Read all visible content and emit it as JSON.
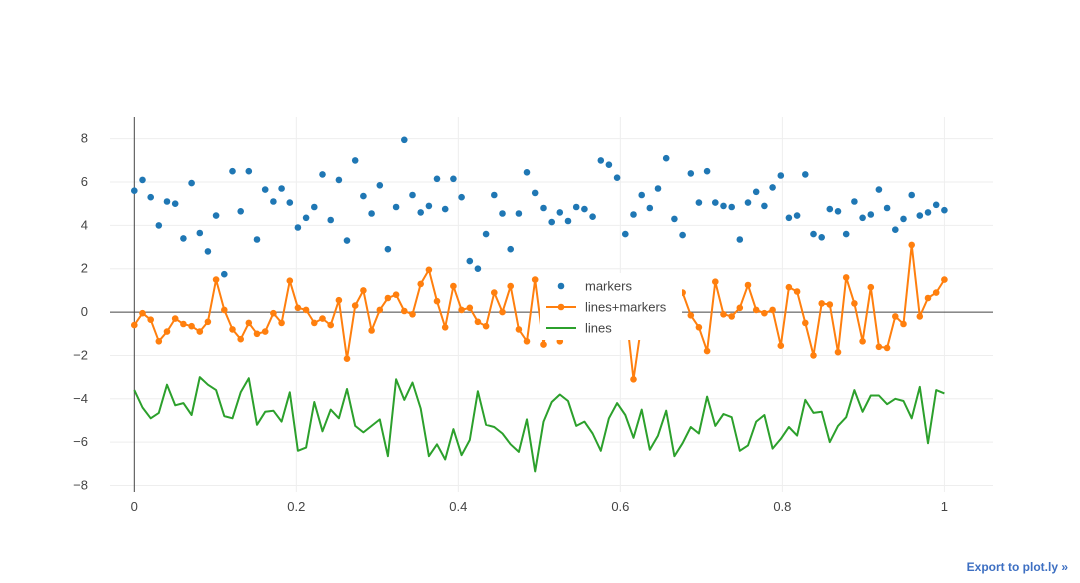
{
  "export_link": {
    "label": "Export to plot.ly »"
  },
  "colors": {
    "markers": "#1f77b4",
    "lines_markers": "#ff7f0e",
    "lines": "#2ca02c",
    "grid": "#eeeeee",
    "zeroline": "#444444",
    "tick_text": "#444444"
  },
  "chart_data": {
    "type": "scatter",
    "title": "",
    "xlabel": "",
    "ylabel": "",
    "xlim": [
      -0.03,
      1.06
    ],
    "ylim": [
      -8.3,
      9.0
    ],
    "x_ticks": [
      0,
      0.2,
      0.4,
      0.6,
      0.8,
      1
    ],
    "x_tick_labels": [
      "0",
      "0.2",
      "0.4",
      "0.6",
      "0.8",
      "1"
    ],
    "y_ticks": [
      -8,
      -6,
      -4,
      -2,
      0,
      2,
      4,
      6,
      8
    ],
    "y_tick_labels": [
      "−8",
      "−6",
      "−4",
      "−2",
      "0",
      "2",
      "4",
      "6",
      "8"
    ],
    "grid": true,
    "legend_position": "center",
    "x": [
      0,
      0.0101,
      0.0202,
      0.0303,
      0.0404,
      0.0505,
      0.0606,
      0.0707,
      0.0808,
      0.0909,
      0.101,
      0.1111,
      0.1212,
      0.1313,
      0.1414,
      0.1515,
      0.1616,
      0.1717,
      0.1818,
      0.1919,
      0.202,
      0.2121,
      0.2222,
      0.2323,
      0.2424,
      0.2525,
      0.2626,
      0.2727,
      0.2828,
      0.2929,
      0.303,
      0.3131,
      0.3232,
      0.3333,
      0.3434,
      0.3535,
      0.3636,
      0.3737,
      0.3838,
      0.3939,
      0.404,
      0.4141,
      0.4242,
      0.4343,
      0.4444,
      0.4545,
      0.4646,
      0.4747,
      0.4848,
      0.4949,
      0.5051,
      0.5152,
      0.5253,
      0.5354,
      0.5455,
      0.5556,
      0.5657,
      0.5758,
      0.5859,
      0.596,
      0.6061,
      0.6162,
      0.6263,
      0.6364,
      0.6465,
      0.6566,
      0.6667,
      0.6768,
      0.6869,
      0.697,
      0.7071,
      0.7172,
      0.7273,
      0.7374,
      0.7475,
      0.7576,
      0.7677,
      0.7778,
      0.7879,
      0.798,
      0.8081,
      0.8182,
      0.8283,
      0.8384,
      0.8485,
      0.8586,
      0.8687,
      0.8788,
      0.8889,
      0.899,
      0.9091,
      0.9192,
      0.9293,
      0.9394,
      0.9495,
      0.9596,
      0.9697,
      0.9798,
      0.9899,
      1.0
    ],
    "series": [
      {
        "name": "markers",
        "mode": "markers",
        "y": [
          5.6,
          6.1,
          5.3,
          4.0,
          5.1,
          5.0,
          3.4,
          5.95,
          3.65,
          2.8,
          4.45,
          1.75,
          6.5,
          4.65,
          6.5,
          3.35,
          5.65,
          5.1,
          5.7,
          5.05,
          3.9,
          4.35,
          4.85,
          6.35,
          4.25,
          6.1,
          3.3,
          7.0,
          5.35,
          4.55,
          5.85,
          2.9,
          4.85,
          7.95,
          5.4,
          4.6,
          4.9,
          6.15,
          4.75,
          6.15,
          5.3,
          2.35,
          2.0,
          3.6,
          5.4,
          4.55,
          2.9,
          4.55,
          6.45,
          5.5,
          4.8,
          4.15,
          4.6,
          4.2,
          4.85,
          4.75,
          4.4,
          7.0,
          6.8,
          6.2,
          3.6,
          4.5,
          5.4,
          4.8,
          5.7,
          7.1,
          4.3,
          3.55,
          6.4,
          5.05,
          6.5,
          5.05,
          4.9,
          4.85,
          3.35,
          5.05,
          5.55,
          4.9,
          5.75,
          6.3,
          4.35,
          4.45,
          6.35,
          3.6,
          3.45,
          4.75,
          4.65,
          3.6,
          5.1,
          4.35,
          4.5,
          5.65,
          4.8,
          3.8,
          4.3,
          5.4,
          4.45,
          4.6,
          4.95,
          4.7
        ]
      },
      {
        "name": "lines+markers",
        "mode": "lines+markers",
        "y": [
          -0.6,
          -0.05,
          -0.35,
          -1.35,
          -0.9,
          -0.3,
          -0.55,
          -0.65,
          -0.9,
          -0.45,
          1.5,
          0.1,
          -0.8,
          -1.25,
          -0.5,
          -1.0,
          -0.9,
          -0.05,
          -0.5,
          1.45,
          0.2,
          0.1,
          -0.5,
          -0.3,
          -0.6,
          0.55,
          -2.15,
          0.3,
          1.0,
          -0.85,
          0.1,
          0.65,
          0.8,
          0.05,
          -0.1,
          1.3,
          1.95,
          0.5,
          -0.7,
          1.2,
          0.1,
          0.2,
          -0.45,
          -0.65,
          0.9,
          0.0,
          1.2,
          -0.8,
          -1.35,
          1.5,
          -1.5,
          0.9,
          -1.35,
          0.6,
          0.7,
          0.3,
          -0.5,
          0.3,
          0.2,
          0.4,
          0.3,
          -3.1,
          -0.5,
          0.5,
          0.3,
          0.8,
          0.0,
          0.9,
          -0.15,
          -0.7,
          -1.8,
          1.4,
          -0.1,
          -0.2,
          0.2,
          1.25,
          0.1,
          -0.05,
          0.1,
          -1.55,
          1.15,
          0.95,
          -0.5,
          -2.0,
          0.4,
          0.35,
          -1.85,
          1.6,
          0.4,
          -1.35,
          1.15,
          -1.6,
          -1.65,
          -0.2,
          -0.55,
          3.1,
          -0.2,
          0.65,
          0.9,
          1.5
        ]
      },
      {
        "name": "lines",
        "mode": "lines",
        "y": [
          -3.6,
          -4.4,
          -4.9,
          -4.65,
          -3.35,
          -4.3,
          -4.2,
          -4.75,
          -3.0,
          -3.35,
          -3.6,
          -4.8,
          -4.9,
          -3.7,
          -3.05,
          -5.2,
          -4.6,
          -4.55,
          -5.05,
          -3.7,
          -6.4,
          -6.25,
          -4.15,
          -5.5,
          -4.5,
          -4.9,
          -3.55,
          -5.25,
          -5.55,
          -5.25,
          -4.95,
          -6.65,
          -3.1,
          -4.05,
          -3.25,
          -4.45,
          -6.65,
          -6.1,
          -6.8,
          -5.4,
          -6.6,
          -5.9,
          -3.65,
          -5.2,
          -5.3,
          -5.6,
          -6.1,
          -6.45,
          -4.95,
          -7.35,
          -5.05,
          -4.15,
          -3.8,
          -4.1,
          -5.25,
          -5.05,
          -5.6,
          -6.4,
          -4.9,
          -4.2,
          -4.75,
          -5.8,
          -4.5,
          -6.35,
          -5.7,
          -4.55,
          -6.65,
          -6.05,
          -5.3,
          -5.6,
          -3.9,
          -5.25,
          -4.7,
          -4.85,
          -6.4,
          -6.15,
          -5.05,
          -4.75,
          -6.3,
          -5.85,
          -5.3,
          -5.7,
          -4.05,
          -4.65,
          -4.6,
          -6.0,
          -5.25,
          -4.85,
          -3.6,
          -4.6,
          -3.85,
          -3.85,
          -4.25,
          -4.0,
          -4.1,
          -4.9,
          -3.45,
          -6.05,
          -3.6,
          -3.75
        ]
      }
    ]
  }
}
